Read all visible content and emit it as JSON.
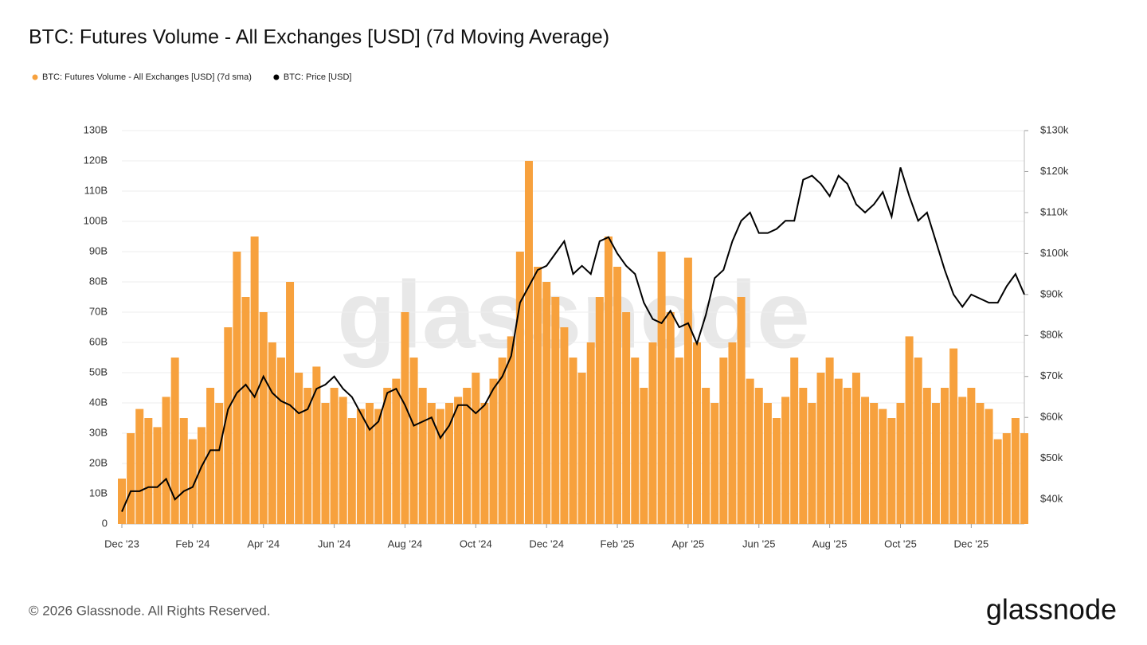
{
  "chart_data": {
    "type": "bar_line",
    "title": "BTC: Futures Volume - All Exchanges [USD] (7d Moving Average)",
    "watermark": "glassnode",
    "copyright": "© 2026 Glassnode. All Rights Reserved.",
    "logo": "glassnode",
    "categories": [
      "Dec '23",
      null,
      null,
      null,
      null,
      null,
      null,
      null,
      "Feb '24",
      null,
      null,
      null,
      null,
      null,
      null,
      null,
      "Apr '24",
      null,
      null,
      null,
      null,
      null,
      null,
      null,
      "Jun '24",
      null,
      null,
      null,
      null,
      null,
      null,
      null,
      "Aug '24",
      null,
      null,
      null,
      null,
      null,
      null,
      null,
      "Oct '24",
      null,
      null,
      null,
      null,
      null,
      null,
      null,
      "Dec '24",
      null,
      null,
      null,
      null,
      null,
      null,
      null,
      "Feb '25",
      null,
      null,
      null,
      null,
      null,
      null,
      null,
      "Apr '25",
      null,
      null,
      null,
      null,
      null,
      null,
      null,
      "Jun '25",
      null,
      null,
      null,
      null,
      null,
      null,
      null,
      "Aug '25",
      null,
      null,
      null,
      null,
      null,
      null,
      null,
      "Oct '25",
      null,
      null,
      null,
      null,
      null,
      null,
      null,
      "Dec '25",
      null,
      null,
      null,
      null,
      null,
      null
    ],
    "series": [
      {
        "name": "BTC: Futures Volume - All Exchanges [USD] (7d sma)",
        "color": "#f7a13d",
        "axis": "y",
        "values": [
          15,
          30,
          38,
          35,
          32,
          42,
          55,
          35,
          28,
          32,
          45,
          40,
          65,
          90,
          75,
          95,
          70,
          60,
          55,
          80,
          50,
          45,
          52,
          40,
          45,
          42,
          35,
          38,
          40,
          38,
          45,
          48,
          70,
          55,
          45,
          40,
          38,
          40,
          42,
          45,
          50,
          40,
          48,
          55,
          62,
          90,
          120,
          85,
          80,
          75,
          65,
          55,
          50,
          60,
          75,
          95,
          85,
          70,
          55,
          45,
          60,
          90,
          70,
          55,
          88,
          60,
          45,
          40,
          55,
          60,
          75,
          48,
          45,
          40,
          35,
          42,
          55,
          45,
          40,
          50,
          55,
          48,
          45,
          50,
          42,
          40,
          38,
          35,
          40,
          62,
          55,
          45,
          40,
          45,
          58,
          42,
          45,
          40,
          38,
          28,
          30,
          35,
          30
        ]
      },
      {
        "name": "BTC: Price [USD]",
        "color": "#000000",
        "axis": "y2",
        "values": [
          37,
          42,
          42,
          43,
          43,
          45,
          40,
          42,
          43,
          48,
          52,
          52,
          62,
          66,
          68,
          65,
          70,
          66,
          64,
          63,
          61,
          62,
          67,
          68,
          70,
          67,
          65,
          61,
          57,
          59,
          66,
          67,
          63,
          58,
          59,
          60,
          55,
          58,
          63,
          63,
          61,
          63,
          67,
          70,
          75,
          88,
          92,
          96,
          97,
          100,
          103,
          95,
          97,
          95,
          103,
          104,
          100,
          97,
          95,
          88,
          84,
          83,
          86,
          82,
          83,
          78,
          85,
          94,
          96,
          103,
          108,
          110,
          105,
          105,
          106,
          108,
          108,
          118,
          119,
          117,
          114,
          119,
          117,
          112,
          110,
          112,
          115,
          109,
          121,
          114,
          108,
          110,
          103,
          96,
          90,
          87,
          90,
          89,
          88,
          88,
          92,
          95,
          90
        ]
      }
    ],
    "ylim": [
      0,
      130
    ],
    "yticks": [
      0,
      {
        "value": 10,
        "label": "10B"
      },
      {
        "value": 20,
        "label": "20B"
      },
      {
        "value": 30,
        "label": "30B"
      },
      {
        "value": 40,
        "label": "40B"
      },
      {
        "value": 50,
        "label": "50B"
      },
      {
        "value": 60,
        "label": "60B"
      },
      {
        "value": 70,
        "label": "70B"
      },
      {
        "value": 80,
        "label": "80B"
      },
      {
        "value": 90,
        "label": "90B"
      },
      {
        "value": 100,
        "label": "100B"
      },
      {
        "value": 110,
        "label": "110B"
      },
      {
        "value": 120,
        "label": "120B"
      },
      {
        "value": 130,
        "label": "130B"
      }
    ],
    "y2lim": [
      34,
      130
    ],
    "y2ticks": [
      {
        "value": 40,
        "label": "$40k"
      },
      {
        "value": 50,
        "label": "$50k"
      },
      {
        "value": 60,
        "label": "$60k"
      },
      {
        "value": 70,
        "label": "$70k"
      },
      {
        "value": 80,
        "label": "$80k"
      },
      {
        "value": 90,
        "label": "$90k"
      },
      {
        "value": 100,
        "label": "$100k"
      },
      {
        "value": 110,
        "label": "$110k"
      },
      {
        "value": 120,
        "label": "$120k"
      },
      {
        "value": 130,
        "label": "$130k"
      }
    ],
    "grid": true
  }
}
